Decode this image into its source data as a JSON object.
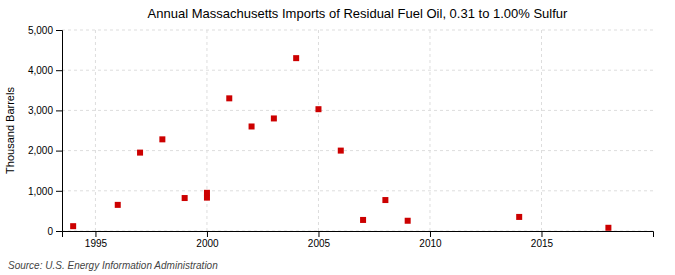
{
  "chart_data": {
    "type": "scatter",
    "title": "Annual Massachusetts Imports of Residual Fuel Oil, 0.31 to 1.00% Sulfur",
    "ylabel": "Thousand Barrels",
    "source": "Source: U.S. Energy Information Administration",
    "x": [
      1994,
      1996,
      1997,
      1998,
      1999,
      2000,
      2000,
      2001,
      2002,
      2003,
      2004,
      2005,
      2006,
      2007,
      2008,
      2009,
      2014,
      2018
    ],
    "values": [
      120,
      650,
      1950,
      2280,
      820,
      830,
      950,
      3300,
      2600,
      2800,
      4300,
      3030,
      2000,
      275,
      770,
      255,
      350,
      80
    ],
    "color": "#cc0000",
    "marker": "square",
    "xlim": [
      1993.5,
      2020
    ],
    "ylim": [
      0,
      5000
    ],
    "xticks": [
      1995,
      2000,
      2005,
      2010,
      2015
    ],
    "yticks": [
      0,
      {
        "value": 1000,
        "label": "1,000"
      },
      {
        "value": 2000,
        "label": "2,000"
      },
      {
        "value": 3000,
        "label": "3,000"
      },
      {
        "value": 4000,
        "label": "4,000"
      },
      {
        "value": 5000,
        "label": "5,000"
      }
    ],
    "grid": true
  }
}
